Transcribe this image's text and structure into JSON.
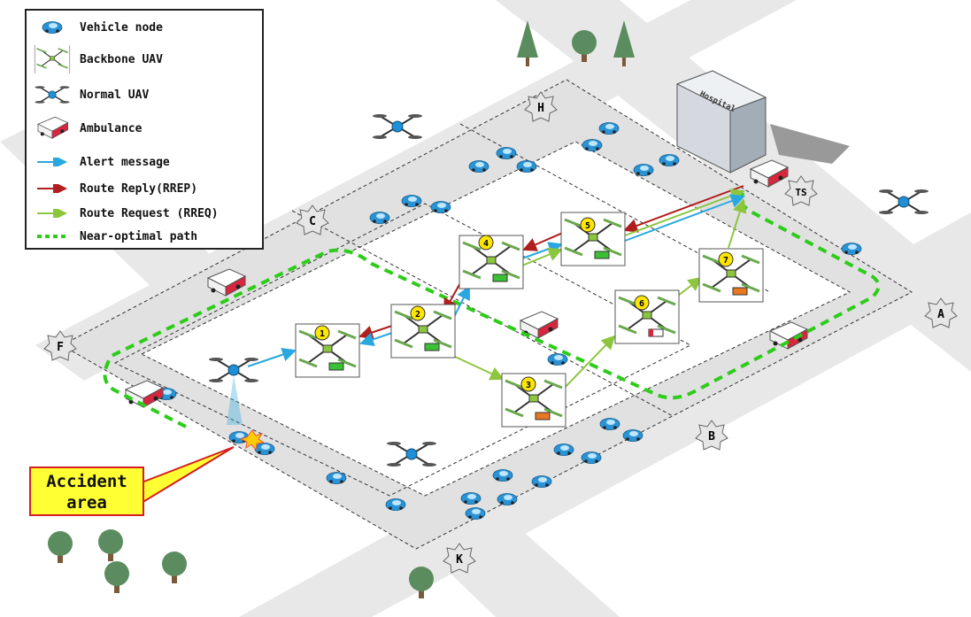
{
  "legend": {
    "vehicle": "Vehicle node",
    "backbone": "Backbone UAV",
    "normal": "Normal UAV",
    "ambulance": "Ambulance",
    "alert": "Alert message",
    "rrep": "Route Reply(RREP)",
    "rreq": "Route Request (RREQ)",
    "path": "Near-optimal path"
  },
  "callout": {
    "line1": "Accident",
    "line2": "area"
  },
  "intersections": {
    "H": "H",
    "C": "C",
    "F": "F",
    "A": "A",
    "B": "B",
    "K": "K",
    "TS": "TS"
  },
  "hospital_label": "Hospital",
  "uav_numbers": [
    "1",
    "2",
    "3",
    "4",
    "5",
    "6",
    "7"
  ],
  "colors": {
    "alert": "#29a8e0",
    "rrep": "#b01e1e",
    "rreq": "#8cc63f",
    "path": "#2ecc1a",
    "road": "#dcdcdc",
    "vehicle": "#2a93d5",
    "badge": "#ffe600"
  }
}
